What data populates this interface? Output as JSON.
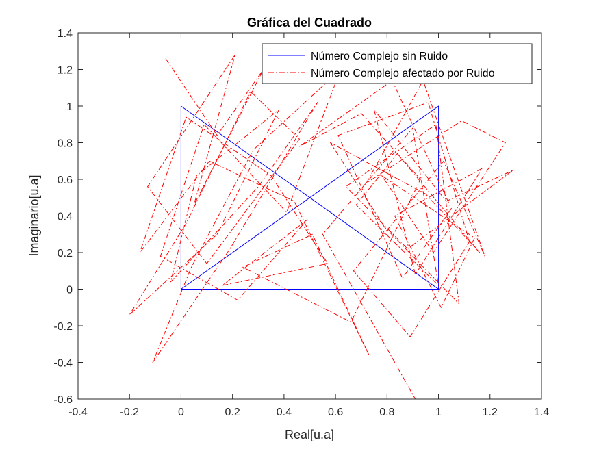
{
  "chart_data": {
    "type": "line",
    "title": "Gráfica del Cuadrado",
    "xlabel": "Real[u.a]",
    "ylabel": "Imaginario[u.a]",
    "xlim": [
      -0.4,
      1.4
    ],
    "ylim": [
      -0.6,
      1.4
    ],
    "xticks": [
      -0.4,
      -0.2,
      0,
      0.2,
      0.4,
      0.6,
      0.8,
      1,
      1.2,
      1.4
    ],
    "yticks": [
      -0.6,
      -0.4,
      -0.2,
      0,
      0.2,
      0.4,
      0.6,
      0.8,
      1,
      1.2,
      1.4
    ],
    "xtick_labels": [
      "-0.4",
      "-0.2",
      "0",
      "0.2",
      "0.4",
      "0.6",
      "0.8",
      "1",
      "1.2",
      "1.4"
    ],
    "ytick_labels": [
      "-0.6",
      "-0.4",
      "-0.2",
      "0",
      "0.2",
      "0.4",
      "0.6",
      "0.8",
      "1",
      "1.2",
      "1.4"
    ],
    "grid": false,
    "legend_position": "top-right",
    "series": [
      {
        "name": "Número Complejo sin Ruido",
        "color": "#0000ff",
        "line_style": "solid",
        "x": [
          0,
          1,
          1,
          0,
          0,
          1,
          0,
          0,
          1
        ],
        "y": [
          0,
          1,
          0,
          1,
          0,
          0,
          1,
          0,
          0
        ]
      },
      {
        "name": "Número Complejo afectado por Ruido",
        "color": "#ff0000",
        "line_style": "dash-dot",
        "x": [
          -0.06,
          0.14,
          0.32,
          0.05,
          0.21,
          -0.13,
          0.1,
          0.46,
          0.27,
          0.02,
          -0.2,
          0.14,
          0.38,
          0.06,
          -0.04,
          0.3,
          0.53,
          0.19,
          -0.11,
          0.04,
          0.28,
          0.62,
          0.41,
          0.09,
          -0.08,
          0.22,
          0.49,
          0.16,
          0.57,
          0.35,
          0.02,
          -0.16,
          0.11,
          0.44,
          0.73,
          0.51,
          0.24,
          0.66,
          0.93,
          0.7,
          0.46,
          0.82,
          1.05,
          0.86,
          0.61,
          0.96,
          1.12,
          0.89,
          0.67,
          1.02,
          1.18,
          0.94,
          0.72,
          1.09,
          1.26,
          0.98,
          0.78,
          1.14,
          1.01,
          0.83,
          1.17,
          0.91,
          0.75,
          1.03,
          1.29,
          0.88,
          0.64,
          0.99,
          1.08,
          0.79,
          0.58,
          0.95,
          1.16,
          0.84,
          0.68,
          1.0,
          0.9,
          0.55,
          0.91
        ],
        "y": [
          1.26,
          0.84,
          1.2,
          0.46,
          1.28,
          0.56,
          0.14,
          0.82,
          1.08,
          0.36,
          -0.14,
          0.3,
          0.98,
          0.62,
          0.04,
          0.56,
          1.02,
          0.22,
          -0.4,
          0.12,
          0.76,
          1.2,
          0.42,
          0.9,
          0.18,
          -0.06,
          0.38,
          0.02,
          0.14,
          0.62,
          0.94,
          0.2,
          0.7,
          0.48,
          -0.36,
          0.3,
          0.12,
          -0.18,
          0.6,
          0.96,
          0.78,
          1.14,
          0.44,
          0.06,
          0.84,
          1.02,
          0.26,
          -0.26,
          0.1,
          0.7,
          0.18,
          1.14,
          0.58,
          0.92,
          0.8,
          0.2,
          0.62,
          0.28,
          -0.1,
          0.4,
          0.66,
          0.08,
          0.98,
          0.48,
          0.65,
          0.22,
          0.56,
          0.9,
          -0.08,
          0.34,
          0.8,
          0.52,
          0.2,
          0.74,
          0.46,
          0.02,
          0.88,
          0.3,
          -0.6
        ]
      }
    ]
  }
}
